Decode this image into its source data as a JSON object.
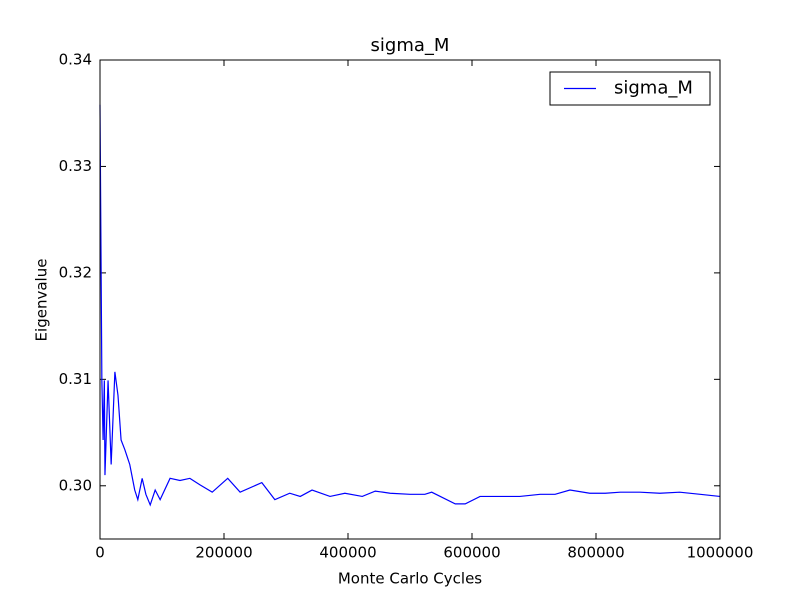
{
  "chart_data": {
    "type": "line",
    "title": "sigma_M",
    "x_label": "Monte Carlo Cycles",
    "y_label": "Eigenvalue",
    "x": [
      0,
      3000,
      5000,
      7000,
      8000,
      13000,
      18000,
      24000,
      29000,
      34000,
      40000,
      48000,
      56000,
      61000,
      68000,
      74000,
      81000,
      89000,
      97000,
      113000,
      129000,
      145000,
      161000,
      181000,
      206000,
      226000,
      261000,
      282000,
      306000,
      323000,
      342000,
      371000,
      395000,
      423000,
      444000,
      468000,
      500000,
      524000,
      535000,
      573000,
      589000,
      613000,
      645000,
      677000,
      710000,
      734000,
      758000,
      790000,
      815000,
      839000,
      871000,
      903000,
      935000,
      968000,
      1000000
    ],
    "series": [
      {
        "name": "sigma_M",
        "color": "#0000ff",
        "values": [
          0.3358,
          0.3099,
          0.3043,
          0.3099,
          0.301,
          0.3099,
          0.302,
          0.3107,
          0.3085,
          0.3043,
          0.3034,
          0.302,
          0.2996,
          0.2987,
          0.3007,
          0.2992,
          0.2982,
          0.2996,
          0.2987,
          0.3007,
          0.3005,
          0.3007,
          0.3001,
          0.2994,
          0.3007,
          0.2994,
          0.3003,
          0.2987,
          0.2993,
          0.299,
          0.2996,
          0.299,
          0.2993,
          0.299,
          0.2995,
          0.2993,
          0.2992,
          0.2992,
          0.2994,
          0.2983,
          0.2983,
          0.299,
          0.299,
          0.299,
          0.2992,
          0.2992,
          0.2996,
          0.2993,
          0.2993,
          0.2994,
          0.2994,
          0.2993,
          0.2994,
          0.2992,
          0.299
        ]
      }
    ],
    "xlim": [
      0,
      1000000
    ],
    "xticks": [
      0,
      200000,
      400000,
      600000,
      800000,
      1000000
    ],
    "ylim": [
      0.295,
      0.34
    ],
    "yticks": [
      {
        "value": 0.3,
        "label": "0.30"
      },
      0.31,
      0.32,
      0.33,
      0.34
    ],
    "grid": false,
    "legend": "upper right"
  }
}
